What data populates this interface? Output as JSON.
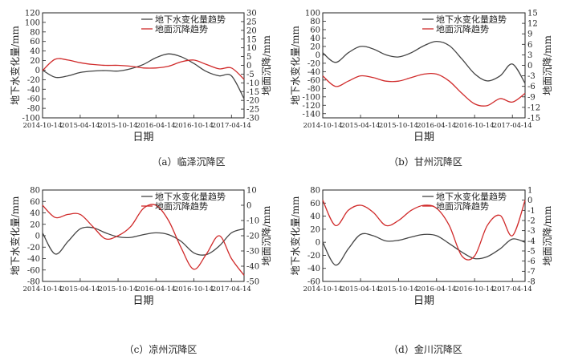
{
  "colors": {
    "gw": "#444444",
    "sub": "#d02a2a",
    "axis": "#222222"
  },
  "chart_data": [
    {
      "type": "line",
      "caption": "（a）临泽沉降区",
      "xlabel": "日期",
      "ylabel_left": "地下水变化量/mm",
      "ylabel_right": "地面沉降/mm",
      "x_tick_labels": [
        "2014-10-14",
        "2015-04-14",
        "2015-10-14",
        "2016-04-14",
        "2016-10-14",
        "2017-04-14"
      ],
      "xlim": [
        "2014-10-14",
        "2017-06-14"
      ],
      "ylim_left": [
        -100,
        120
      ],
      "yticks_left": [
        120,
        100,
        80,
        60,
        40,
        20,
        0,
        -20,
        -40,
        -60,
        -80,
        -100
      ],
      "ylim_right": [
        -30,
        30
      ],
      "yticks_right": [
        30,
        25,
        20,
        15,
        10,
        5,
        0,
        -5,
        -10,
        -15,
        -20,
        -25,
        -30
      ],
      "legend": "top-right",
      "series": [
        {
          "name": "地下水变化量趋势",
          "axis": "left",
          "x": [
            "2014-10-14",
            "2014-12-14",
            "2015-02-14",
            "2015-04-14",
            "2015-06-14",
            "2015-08-14",
            "2015-10-14",
            "2015-12-14",
            "2016-02-14",
            "2016-04-14",
            "2016-06-14",
            "2016-08-14",
            "2016-10-14",
            "2016-12-14",
            "2017-02-14",
            "2017-04-14",
            "2017-06-14"
          ],
          "y": [
            0,
            -15,
            -12,
            -5,
            -2,
            -1,
            -2,
            3,
            12,
            26,
            34,
            28,
            14,
            -3,
            -12,
            -12,
            -60
          ]
        },
        {
          "name": "地面沉降趋势",
          "axis": "right",
          "x": [
            "2014-10-14",
            "2014-12-14",
            "2015-02-14",
            "2015-04-14",
            "2015-06-14",
            "2015-08-14",
            "2015-10-14",
            "2015-12-14",
            "2016-02-14",
            "2016-04-14",
            "2016-06-14",
            "2016-08-14",
            "2016-10-14",
            "2016-12-14",
            "2017-02-14",
            "2017-04-14",
            "2017-06-14"
          ],
          "y": [
            -3,
            3.5,
            3,
            1.5,
            0.5,
            0,
            0,
            -0.5,
            -1.5,
            -1.5,
            -0.5,
            2,
            3,
            0.5,
            -2,
            -1.5,
            -8
          ]
        }
      ]
    },
    {
      "type": "line",
      "caption": "（b）甘州沉降区",
      "xlabel": "日期",
      "ylabel_left": "地下水变化量/mm",
      "ylabel_right": "地面沉降/mm",
      "x_tick_labels": [
        "2014-10-14",
        "2015-04-14",
        "2015-10-14",
        "2016-04-14",
        "2016-10-14",
        "2017-04-14"
      ],
      "xlim": [
        "2014-10-14",
        "2017-06-14"
      ],
      "ylim_left": [
        -150,
        100
      ],
      "yticks_left": [
        100,
        80,
        60,
        40,
        20,
        0,
        -20,
        -40,
        -60,
        -80,
        -100,
        -120,
        -140
      ],
      "ylim_right": [
        -15,
        15
      ],
      "yticks_right": [
        15,
        12,
        9,
        6,
        3,
        0,
        -3,
        -6,
        -9,
        -12,
        -15
      ],
      "legend": "top-right",
      "series": [
        {
          "name": "地下水变化量趋势",
          "axis": "left",
          "x": [
            "2014-10-14",
            "2014-12-14",
            "2015-02-14",
            "2015-04-14",
            "2015-06-14",
            "2015-08-14",
            "2015-10-14",
            "2015-12-14",
            "2016-02-14",
            "2016-04-14",
            "2016-06-14",
            "2016-08-14",
            "2016-10-14",
            "2016-12-14",
            "2017-02-14",
            "2017-04-14",
            "2017-06-14"
          ],
          "y": [
            5,
            -18,
            5,
            20,
            14,
            0,
            -5,
            5,
            22,
            32,
            22,
            -10,
            -45,
            -62,
            -50,
            -22,
            -68
          ]
        },
        {
          "name": "地面沉降趋势",
          "axis": "right",
          "x": [
            "2014-10-14",
            "2014-12-14",
            "2015-02-14",
            "2015-04-14",
            "2015-06-14",
            "2015-08-14",
            "2015-10-14",
            "2015-12-14",
            "2016-02-14",
            "2016-04-14",
            "2016-06-14",
            "2016-08-14",
            "2016-10-14",
            "2016-12-14",
            "2017-02-14",
            "2017-04-14",
            "2017-06-14"
          ],
          "y": [
            -3,
            -6,
            -4.5,
            -3,
            -3.5,
            -4.5,
            -4.5,
            -3.5,
            -2.5,
            -2.5,
            -4.5,
            -8,
            -11,
            -11.5,
            -9.5,
            -10.5,
            -8
          ]
        }
      ]
    },
    {
      "type": "line",
      "caption": "（c）凉州沉降区",
      "xlabel": "日期",
      "ylabel_left": "地下水变化量/mm",
      "ylabel_right": "地面沉降/mm",
      "x_tick_labels": [
        "2014-10-14",
        "2015-04-14",
        "2015-10-14",
        "2016-04-14",
        "2016-10-14",
        "2017-04-14"
      ],
      "xlim": [
        "2014-10-14",
        "2017-06-14"
      ],
      "ylim_left": [
        -80,
        80
      ],
      "yticks_left": [
        80,
        60,
        40,
        20,
        0,
        -20,
        -40,
        -60,
        -80
      ],
      "ylim_right": [
        -50,
        10
      ],
      "yticks_right": [
        10,
        0,
        -10,
        -20,
        -30,
        -40,
        -50
      ],
      "legend": "top-right",
      "series": [
        {
          "name": "地下水变化量趋势",
          "axis": "left",
          "x": [
            "2014-10-14",
            "2014-12-14",
            "2015-02-14",
            "2015-04-14",
            "2015-06-14",
            "2015-08-14",
            "2015-10-14",
            "2015-12-14",
            "2016-02-14",
            "2016-04-14",
            "2016-06-14",
            "2016-08-14",
            "2016-10-14",
            "2016-12-14",
            "2017-02-14",
            "2017-04-14",
            "2017-06-14"
          ],
          "y": [
            5,
            -32,
            -10,
            12,
            14,
            5,
            -2,
            -3,
            2,
            5,
            2,
            -10,
            -30,
            -33,
            -18,
            5,
            12
          ]
        },
        {
          "name": "地面沉降趋势",
          "axis": "right",
          "x": [
            "2014-10-14",
            "2014-12-14",
            "2015-02-14",
            "2015-04-14",
            "2015-06-14",
            "2015-08-14",
            "2015-10-14",
            "2015-12-14",
            "2016-02-14",
            "2016-04-14",
            "2016-06-14",
            "2016-08-14",
            "2016-10-14",
            "2016-12-14",
            "2017-02-14",
            "2017-04-14",
            "2017-06-14"
          ],
          "y": [
            0,
            -8,
            -6,
            -6,
            -14,
            -22,
            -20,
            -14,
            -2,
            0,
            -10,
            -28,
            -42,
            -32,
            -20,
            -35,
            -46
          ]
        }
      ]
    },
    {
      "type": "line",
      "caption": "（d）金川沉降区",
      "xlabel": "日期",
      "ylabel_left": "地下水变化量/mm",
      "ylabel_right": "地面沉降/mm",
      "x_tick_labels": [
        "2014-10-14",
        "2015-04-14",
        "2015-10-14",
        "2016-04-14",
        "2016-10-14",
        "2017-04-14"
      ],
      "xlim": [
        "2014-10-14",
        "2017-06-14"
      ],
      "ylim_left": [
        -60,
        80
      ],
      "yticks_left": [
        80,
        60,
        40,
        20,
        0,
        -20,
        -40,
        -60
      ],
      "ylim_right": [
        -8,
        1
      ],
      "yticks_right": [
        1,
        0,
        -1,
        -2,
        -3,
        -4,
        -5,
        -6,
        -7,
        -8
      ],
      "legend": "top-right",
      "series": [
        {
          "name": "地下水变化量趋势",
          "axis": "left",
          "x": [
            "2014-10-14",
            "2014-12-14",
            "2015-02-14",
            "2015-04-14",
            "2015-06-14",
            "2015-08-14",
            "2015-10-14",
            "2015-12-14",
            "2016-02-14",
            "2016-04-14",
            "2016-06-14",
            "2016-08-14",
            "2016-10-14",
            "2016-12-14",
            "2017-02-14",
            "2017-04-14",
            "2017-06-14"
          ],
          "y": [
            0,
            -35,
            -10,
            12,
            10,
            2,
            3,
            8,
            12,
            10,
            -2,
            -15,
            -25,
            -22,
            -10,
            5,
            0
          ]
        },
        {
          "name": "地面沉降趋势",
          "axis": "right",
          "x": [
            "2014-10-14",
            "2014-12-14",
            "2015-02-14",
            "2015-04-14",
            "2015-06-14",
            "2015-08-14",
            "2015-10-14",
            "2015-12-14",
            "2016-02-14",
            "2016-04-14",
            "2016-06-14",
            "2016-08-14",
            "2016-10-14",
            "2016-12-14",
            "2017-02-14",
            "2017-04-14",
            "2017-06-14"
          ],
          "y": [
            0,
            -2.5,
            -1,
            -0.5,
            -1.2,
            -2.5,
            -2,
            -1,
            -0.5,
            -0.8,
            -2.5,
            -5.5,
            -5.5,
            -2.5,
            -1.5,
            -3.5,
            0
          ]
        }
      ]
    }
  ]
}
